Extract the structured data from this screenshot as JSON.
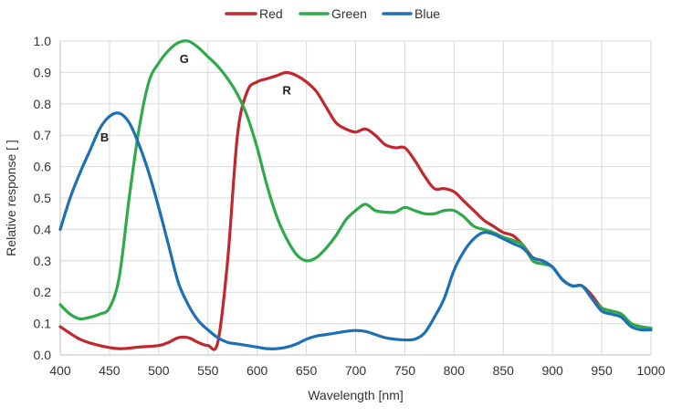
{
  "chart_data": {
    "type": "line",
    "xlabel": "Wavelength [nm]",
    "ylabel": "Relative response [ ]",
    "xlim": [
      400,
      1000
    ],
    "ylim": [
      0,
      1.0
    ],
    "x_ticks": [
      "400",
      "450",
      "500",
      "550",
      "600",
      "650",
      "700",
      "750",
      "800",
      "850",
      "900",
      "950",
      "1000"
    ],
    "y_ticks": [
      "0.0",
      "0.1",
      "0.2",
      "0.3",
      "0.4",
      "0.5",
      "0.6",
      "0.7",
      "0.8",
      "0.9",
      "1.0"
    ],
    "grid": true,
    "legend_position": "top-center",
    "series": [
      {
        "name": "Red",
        "color": "#c0282d",
        "x": [
          400,
          420,
          440,
          460,
          480,
          500,
          510,
          520,
          530,
          540,
          550,
          560,
          570,
          580,
          590,
          600,
          610,
          620,
          630,
          640,
          650,
          660,
          670,
          680,
          690,
          700,
          710,
          720,
          730,
          740,
          750,
          760,
          770,
          780,
          790,
          800,
          810,
          820,
          830,
          840,
          850,
          860,
          870,
          880,
          890,
          900,
          910,
          920,
          930,
          940,
          950,
          960,
          970,
          980,
          990,
          1000
        ],
        "y": [
          0.09,
          0.05,
          0.03,
          0.02,
          0.025,
          0.03,
          0.04,
          0.055,
          0.055,
          0.04,
          0.03,
          0.04,
          0.3,
          0.7,
          0.84,
          0.87,
          0.88,
          0.89,
          0.9,
          0.89,
          0.87,
          0.84,
          0.79,
          0.74,
          0.72,
          0.71,
          0.72,
          0.7,
          0.67,
          0.66,
          0.66,
          0.62,
          0.57,
          0.53,
          0.53,
          0.52,
          0.49,
          0.46,
          0.43,
          0.41,
          0.39,
          0.38,
          0.35,
          0.31,
          0.3,
          0.28,
          0.24,
          0.22,
          0.22,
          0.19,
          0.15,
          0.14,
          0.13,
          0.1,
          0.09,
          0.085
        ]
      },
      {
        "name": "Green",
        "color": "#2faa4a",
        "x": [
          400,
          410,
          420,
          430,
          440,
          450,
          460,
          470,
          480,
          490,
          500,
          510,
          520,
          530,
          540,
          550,
          560,
          570,
          580,
          590,
          600,
          610,
          620,
          630,
          640,
          650,
          660,
          670,
          680,
          690,
          700,
          710,
          720,
          730,
          740,
          750,
          760,
          770,
          780,
          790,
          800,
          810,
          820,
          830,
          840,
          850,
          860,
          870,
          880,
          890,
          900,
          910,
          920,
          930,
          940,
          950,
          960,
          970,
          980,
          990,
          1000
        ],
        "y": [
          0.16,
          0.13,
          0.115,
          0.12,
          0.13,
          0.15,
          0.25,
          0.5,
          0.72,
          0.87,
          0.93,
          0.97,
          0.995,
          1.0,
          0.98,
          0.95,
          0.92,
          0.88,
          0.83,
          0.76,
          0.66,
          0.54,
          0.44,
          0.37,
          0.32,
          0.3,
          0.31,
          0.34,
          0.38,
          0.43,
          0.46,
          0.48,
          0.46,
          0.455,
          0.455,
          0.47,
          0.46,
          0.45,
          0.45,
          0.46,
          0.46,
          0.44,
          0.41,
          0.4,
          0.39,
          0.375,
          0.365,
          0.35,
          0.3,
          0.29,
          0.28,
          0.24,
          0.22,
          0.22,
          0.18,
          0.15,
          0.14,
          0.13,
          0.1,
          0.09,
          0.085
        ]
      },
      {
        "name": "Blue",
        "color": "#1f6fb5",
        "x": [
          400,
          410,
          420,
          430,
          440,
          450,
          460,
          470,
          480,
          490,
          500,
          510,
          520,
          530,
          540,
          550,
          560,
          570,
          580,
          590,
          600,
          610,
          620,
          630,
          640,
          650,
          660,
          670,
          680,
          690,
          700,
          710,
          720,
          730,
          740,
          750,
          760,
          770,
          780,
          790,
          800,
          810,
          820,
          830,
          840,
          850,
          860,
          870,
          880,
          890,
          900,
          910,
          920,
          930,
          940,
          950,
          960,
          970,
          980,
          990,
          1000
        ],
        "y": [
          0.4,
          0.5,
          0.58,
          0.65,
          0.72,
          0.76,
          0.77,
          0.74,
          0.67,
          0.58,
          0.47,
          0.35,
          0.23,
          0.16,
          0.11,
          0.08,
          0.055,
          0.04,
          0.035,
          0.03,
          0.025,
          0.02,
          0.02,
          0.025,
          0.035,
          0.05,
          0.06,
          0.065,
          0.07,
          0.075,
          0.078,
          0.075,
          0.065,
          0.055,
          0.05,
          0.048,
          0.05,
          0.07,
          0.12,
          0.18,
          0.27,
          0.33,
          0.37,
          0.39,
          0.385,
          0.37,
          0.355,
          0.34,
          0.31,
          0.3,
          0.28,
          0.24,
          0.22,
          0.22,
          0.18,
          0.14,
          0.13,
          0.12,
          0.09,
          0.08,
          0.08
        ]
      }
    ],
    "annotations": [
      {
        "text": "R",
        "x": 630,
        "y": 0.83
      },
      {
        "text": "G",
        "x": 526,
        "y": 0.93
      },
      {
        "text": "B",
        "x": 445,
        "y": 0.68
      }
    ]
  }
}
